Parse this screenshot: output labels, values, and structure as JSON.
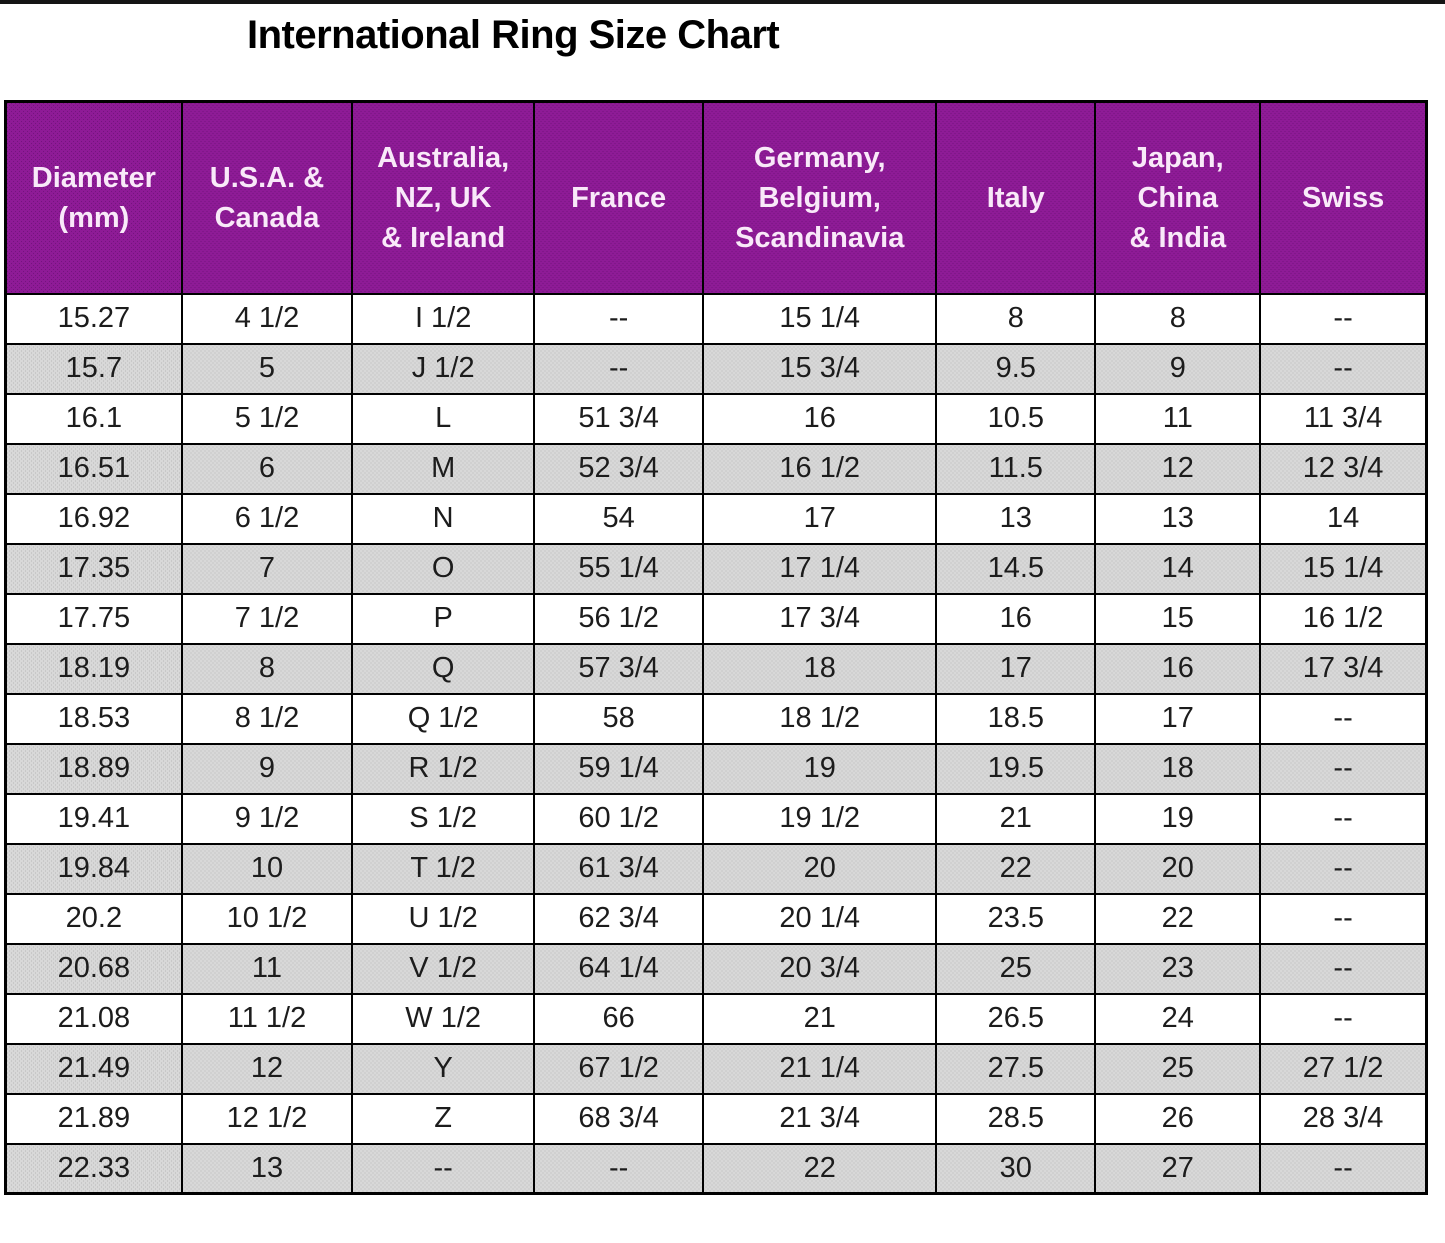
{
  "title": "International Ring Size Chart",
  "colors": {
    "header_bg": "#8e1b96",
    "header_text": "#f9e9f9",
    "alt_row_bg": "#d8d8d8",
    "border": "#000000",
    "title": "#000000"
  },
  "chart_data": {
    "type": "table",
    "title": "International Ring Size Chart",
    "columns": [
      "Diameter\n(mm)",
      "U.S.A. &\nCanada",
      "Australia,\nNZ, UK\n& Ireland",
      "France",
      "Germany,\nBelgium,\nScandinavia",
      "Italy",
      "Japan,\nChina\n& India",
      "Swiss"
    ],
    "rows": [
      [
        "15.27",
        "4 1/2",
        "I 1/2",
        "--",
        "15 1/4",
        "8",
        "8",
        "--"
      ],
      [
        "15.7",
        "5",
        "J 1/2",
        "--",
        "15 3/4",
        "9.5",
        "9",
        "--"
      ],
      [
        "16.1",
        "5 1/2",
        "L",
        "51 3/4",
        "16",
        "10.5",
        "11",
        "11 3/4"
      ],
      [
        "16.51",
        "6",
        "M",
        "52 3/4",
        "16 1/2",
        "11.5",
        "12",
        "12 3/4"
      ],
      [
        "16.92",
        "6 1/2",
        "N",
        "54",
        "17",
        "13",
        "13",
        "14"
      ],
      [
        "17.35",
        "7",
        "O",
        "55 1/4",
        "17 1/4",
        "14.5",
        "14",
        "15 1/4"
      ],
      [
        "17.75",
        "7 1/2",
        "P",
        "56 1/2",
        "17 3/4",
        "16",
        "15",
        "16 1/2"
      ],
      [
        "18.19",
        "8",
        "Q",
        "57 3/4",
        "18",
        "17",
        "16",
        "17 3/4"
      ],
      [
        "18.53",
        "8 1/2",
        "Q 1/2",
        "58",
        "18 1/2",
        "18.5",
        "17",
        "--"
      ],
      [
        "18.89",
        "9",
        "R 1/2",
        "59 1/4",
        "19",
        "19.5",
        "18",
        "--"
      ],
      [
        "19.41",
        "9 1/2",
        "S 1/2",
        "60 1/2",
        "19 1/2",
        "21",
        "19",
        "--"
      ],
      [
        "19.84",
        "10",
        "T 1/2",
        "61 3/4",
        "20",
        "22",
        "20",
        "--"
      ],
      [
        "20.2",
        "10 1/2",
        "U 1/2",
        "62 3/4",
        "20 1/4",
        "23.5",
        "22",
        "--"
      ],
      [
        "20.68",
        "11",
        "V 1/2",
        "64 1/4",
        "20 3/4",
        "25",
        "23",
        "--"
      ],
      [
        "21.08",
        "11 1/2",
        "W 1/2",
        "66",
        "21",
        "26.5",
        "24",
        "--"
      ],
      [
        "21.49",
        "12",
        "Y",
        "67 1/2",
        "21 1/4",
        "27.5",
        "25",
        "27 1/2"
      ],
      [
        "21.89",
        "12 1/2",
        "Z",
        "68 3/4",
        "21 3/4",
        "28.5",
        "26",
        "28 3/4"
      ],
      [
        "22.33",
        "13",
        "--",
        "--",
        "22",
        "30",
        "27",
        "--"
      ]
    ]
  }
}
